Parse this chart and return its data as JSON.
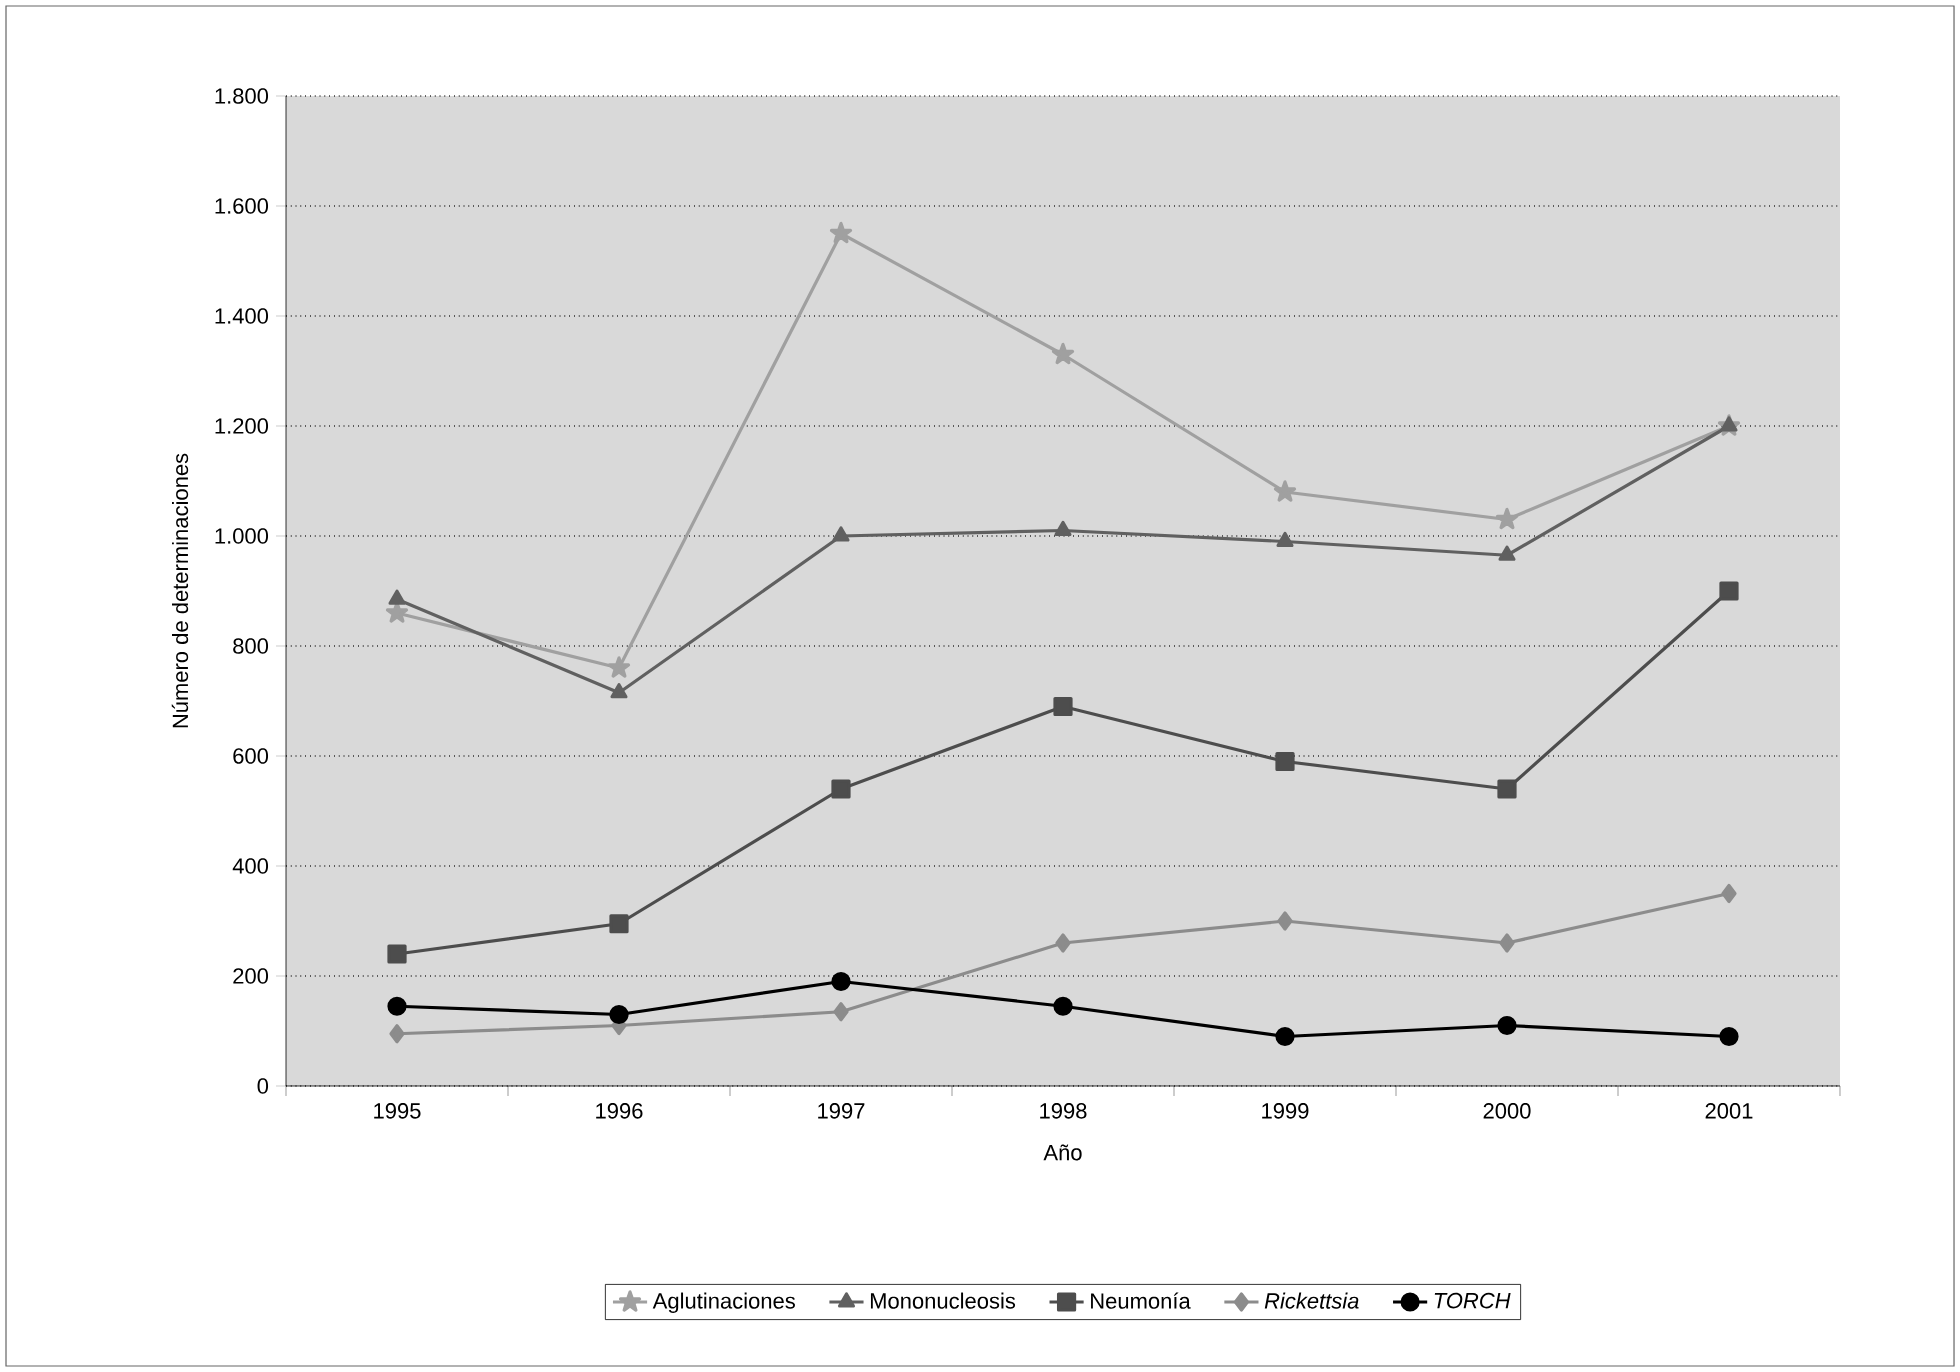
{
  "chart_data": {
    "type": "line",
    "xlabel": "Año",
    "ylabel": "Número de determinaciones",
    "categories": [
      "1995",
      "1996",
      "1997",
      "1998",
      "1999",
      "2000",
      "2001"
    ],
    "ylim": [
      0,
      1800
    ],
    "yticks": [
      0,
      200,
      400,
      600,
      800,
      {
        "value": 1000,
        "label": "1.000"
      },
      {
        "value": 1200,
        "label": "1.200"
      },
      {
        "value": 1400,
        "label": "1.400"
      },
      {
        "value": 1600,
        "label": "1.600"
      },
      {
        "value": 1800,
        "label": "1.800"
      }
    ],
    "grid": "y",
    "legend": "bottom",
    "line_style": "solid",
    "series": [
      {
        "name": "Aglutinaciones",
        "color": "#a0a0a0",
        "marker": "star",
        "values": [
          860,
          760,
          1550,
          1330,
          1080,
          1030,
          1200
        ]
      },
      {
        "name": "Mononucleosis",
        "color": "#606060",
        "marker": "triangle",
        "values": [
          885,
          715,
          1000,
          1010,
          990,
          965,
          1200
        ]
      },
      {
        "name": "Neumonía",
        "color": "#4d4d4d",
        "marker": "square",
        "values": [
          240,
          295,
          540,
          690,
          590,
          540,
          900
        ]
      },
      {
        "name": "*Rickettsia*",
        "color": "#8c8c8c",
        "marker": "diamond",
        "values": [
          95,
          110,
          135,
          260,
          300,
          260,
          350
        ]
      },
      {
        "name": "*TORCH*",
        "color": "#000000",
        "marker": "circle",
        "values": [
          145,
          130,
          190,
          145,
          90,
          110,
          90
        ]
      }
    ]
  }
}
